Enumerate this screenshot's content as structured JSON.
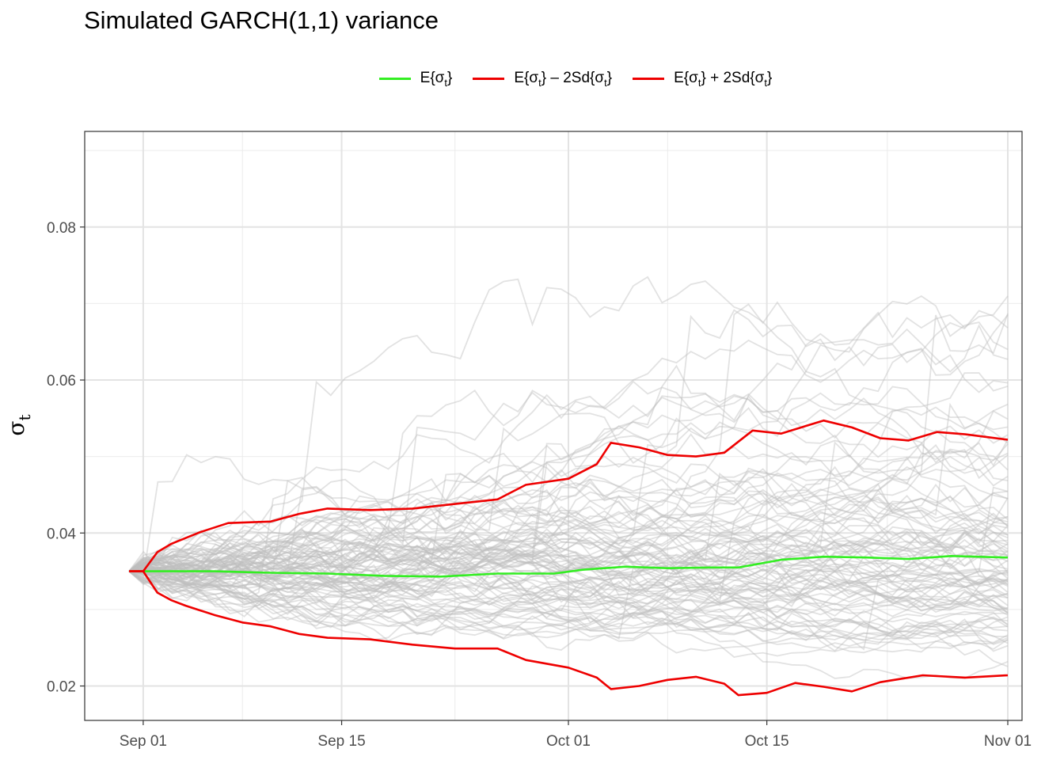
{
  "chart_data": {
    "type": "line",
    "title": "Simulated GARCH(1,1) variance",
    "ylabel": "σt",
    "ylabel_main": "σ",
    "ylabel_sub": "t",
    "xlabel": "",
    "x_start": "2021-08-31",
    "x_end": "2021-11-01",
    "x_ticks": [
      {
        "date": "2021-09-01",
        "label": "Sep 01"
      },
      {
        "date": "2021-09-15",
        "label": "Sep 15"
      },
      {
        "date": "2021-10-01",
        "label": "Oct 01"
      },
      {
        "date": "2021-10-15",
        "label": "Oct 15"
      },
      {
        "date": "2021-11-01",
        "label": "Nov 01"
      }
    ],
    "ylim": [
      0.0155,
      0.0925
    ],
    "y_ticks": [
      0.02,
      0.04,
      0.06,
      0.08
    ],
    "y_tick_labels": [
      "0.02",
      "0.04",
      "0.06",
      "0.08"
    ],
    "grid": true,
    "legend_position": "top",
    "sim_color": "#bebebe",
    "series": [
      {
        "name": "E{σt}",
        "legend_main": "E{σ",
        "legend_sub": "t",
        "legend_rest": "}",
        "color": "#00ee00",
        "x": [
          "2021-08-31",
          "2021-09-02",
          "2021-09-06",
          "2021-09-08",
          "2021-09-10",
          "2021-09-14",
          "2021-09-18",
          "2021-09-22",
          "2021-09-26",
          "2021-09-30",
          "2021-10-02",
          "2021-10-05",
          "2021-10-08",
          "2021-10-11",
          "2021-10-13",
          "2021-10-16",
          "2021-10-19",
          "2021-10-22",
          "2021-10-25",
          "2021-10-28",
          "2021-11-01"
        ],
        "y": [
          0.035,
          0.035,
          0.035,
          0.0349,
          0.0348,
          0.0347,
          0.0344,
          0.0343,
          0.0347,
          0.0347,
          0.0352,
          0.0356,
          0.0354,
          0.0355,
          0.0355,
          0.0365,
          0.0369,
          0.0368,
          0.0366,
          0.037,
          0.0368
        ]
      },
      {
        "name": "E{σt} – 2Sd{σt}",
        "legend_main": "E{σ",
        "legend_sub": "t",
        "legend_rest": "} – 2Sd{σ",
        "legend_sub2": "t",
        "legend_rest2": "}",
        "color": "#ee0000",
        "x": [
          "2021-08-31",
          "2021-09-01",
          "2021-09-02",
          "2021-09-03",
          "2021-09-04",
          "2021-09-06",
          "2021-09-08",
          "2021-09-10",
          "2021-09-12",
          "2021-09-14",
          "2021-09-17",
          "2021-09-20",
          "2021-09-23",
          "2021-09-26",
          "2021-09-28",
          "2021-10-01",
          "2021-10-03",
          "2021-10-04",
          "2021-10-06",
          "2021-10-08",
          "2021-10-10",
          "2021-10-12",
          "2021-10-13",
          "2021-10-15",
          "2021-10-17",
          "2021-10-19",
          "2021-10-21",
          "2021-10-23",
          "2021-10-26",
          "2021-10-29",
          "2021-11-01"
        ],
        "y": [
          0.035,
          0.035,
          0.0322,
          0.0312,
          0.0305,
          0.0293,
          0.0283,
          0.0278,
          0.0268,
          0.0263,
          0.0261,
          0.0254,
          0.0249,
          0.0249,
          0.0234,
          0.0224,
          0.0211,
          0.0196,
          0.02,
          0.0208,
          0.0212,
          0.0203,
          0.0188,
          0.0191,
          0.0204,
          0.0199,
          0.0193,
          0.0205,
          0.0214,
          0.0211,
          0.0214
        ]
      },
      {
        "name": "E{σt} + 2Sd{σt}",
        "legend_main": "E{σ",
        "legend_sub": "t",
        "legend_rest": "} + 2Sd{σ",
        "legend_sub2": "t",
        "legend_rest2": "}",
        "color": "#ee0000",
        "x": [
          "2021-08-31",
          "2021-09-01",
          "2021-09-02",
          "2021-09-03",
          "2021-09-05",
          "2021-09-07",
          "2021-09-10",
          "2021-09-12",
          "2021-09-14",
          "2021-09-17",
          "2021-09-20",
          "2021-09-23",
          "2021-09-26",
          "2021-09-28",
          "2021-10-01",
          "2021-10-03",
          "2021-10-04",
          "2021-10-06",
          "2021-10-08",
          "2021-10-10",
          "2021-10-12",
          "2021-10-14",
          "2021-10-16",
          "2021-10-19",
          "2021-10-21",
          "2021-10-23",
          "2021-10-25",
          "2021-10-27",
          "2021-10-29",
          "2021-11-01"
        ],
        "y": [
          0.035,
          0.035,
          0.0375,
          0.0386,
          0.0401,
          0.0413,
          0.0415,
          0.0425,
          0.0432,
          0.043,
          0.0432,
          0.0438,
          0.0444,
          0.0463,
          0.0471,
          0.049,
          0.0518,
          0.0512,
          0.0502,
          0.05,
          0.0505,
          0.0534,
          0.053,
          0.0547,
          0.0538,
          0.0524,
          0.0521,
          0.0532,
          0.0529,
          0.0522
        ]
      }
    ],
    "simulations": {
      "count": 100,
      "note_color": "#bebebe"
    }
  }
}
